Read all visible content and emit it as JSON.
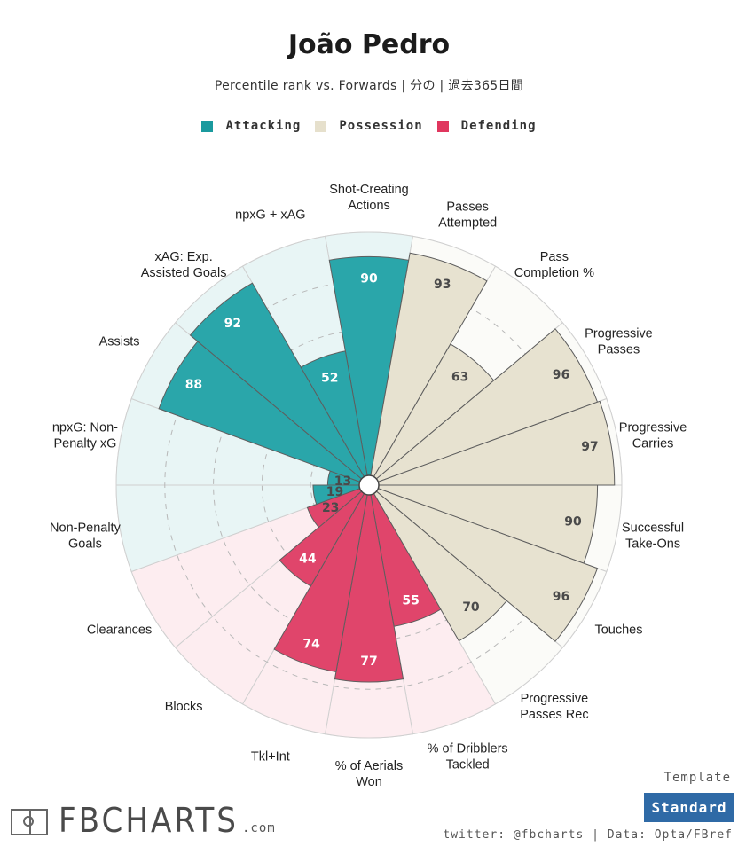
{
  "header": {
    "title": "João Pedro",
    "subtitle": "Percentile rank vs. Forwards | 分の | 過去365日間"
  },
  "legend": [
    {
      "label": "Attacking",
      "color": "#1a9a9e"
    },
    {
      "label": "Possession",
      "color": "#e6e0cc"
    },
    {
      "label": "Defending",
      "color": "#e0365e"
    }
  ],
  "footer": {
    "logo_text": "FBCHARTS",
    "logo_suffix": ".com",
    "template_label": "Template",
    "template_value": "Standard",
    "credits": "twitter: @fbcharts | Data: Opta/FBref"
  },
  "chart_data": {
    "type": "radar-bar",
    "title": "João Pedro",
    "scale": [
      0,
      100
    ],
    "colors": {
      "Attacking": {
        "fill": "#2aa6aa",
        "bg": "#e8f5f5"
      },
      "Possession": {
        "fill": "#e7e2d0",
        "bg": "#fbfbf8"
      },
      "Defending": {
        "fill": "#e0456b",
        "bg": "#fdedf0"
      }
    },
    "metrics": [
      {
        "label": "Shot-Creating\nActions",
        "value": 90,
        "group": "Attacking"
      },
      {
        "label": "Passes\nAttempted",
        "value": 93,
        "group": "Possession"
      },
      {
        "label": "Pass\nCompletion %",
        "value": 63,
        "group": "Possession"
      },
      {
        "label": "Progressive\nPasses",
        "value": 96,
        "group": "Possession"
      },
      {
        "label": "Progressive\nCarries",
        "value": 97,
        "group": "Possession"
      },
      {
        "label": "Successful\nTake-Ons",
        "value": 90,
        "group": "Possession"
      },
      {
        "label": "Touches",
        "value": 96,
        "group": "Possession"
      },
      {
        "label": "Progressive\nPasses Rec",
        "value": 70,
        "group": "Possession"
      },
      {
        "label": "% of Dribblers\nTackled",
        "value": 55,
        "group": "Defending"
      },
      {
        "label": "% of Aerials\nWon",
        "value": 77,
        "group": "Defending"
      },
      {
        "label": "Tkl+Int",
        "value": 74,
        "group": "Defending"
      },
      {
        "label": "Blocks",
        "value": 44,
        "group": "Defending"
      },
      {
        "label": "Clearances",
        "value": 23,
        "group": "Defending"
      },
      {
        "label": "Non-Penalty\nGoals",
        "value": 19,
        "group": "Attacking"
      },
      {
        "label": "npxG: Non-\nPenalty xG",
        "value": 13,
        "group": "Attacking"
      },
      {
        "label": "Assists",
        "value": 88,
        "group": "Attacking"
      },
      {
        "label": "xAG: Exp.\nAssisted Goals",
        "value": 92,
        "group": "Attacking"
      },
      {
        "label": "npxG + xAG",
        "value": 52,
        "group": "Attacking"
      }
    ]
  }
}
